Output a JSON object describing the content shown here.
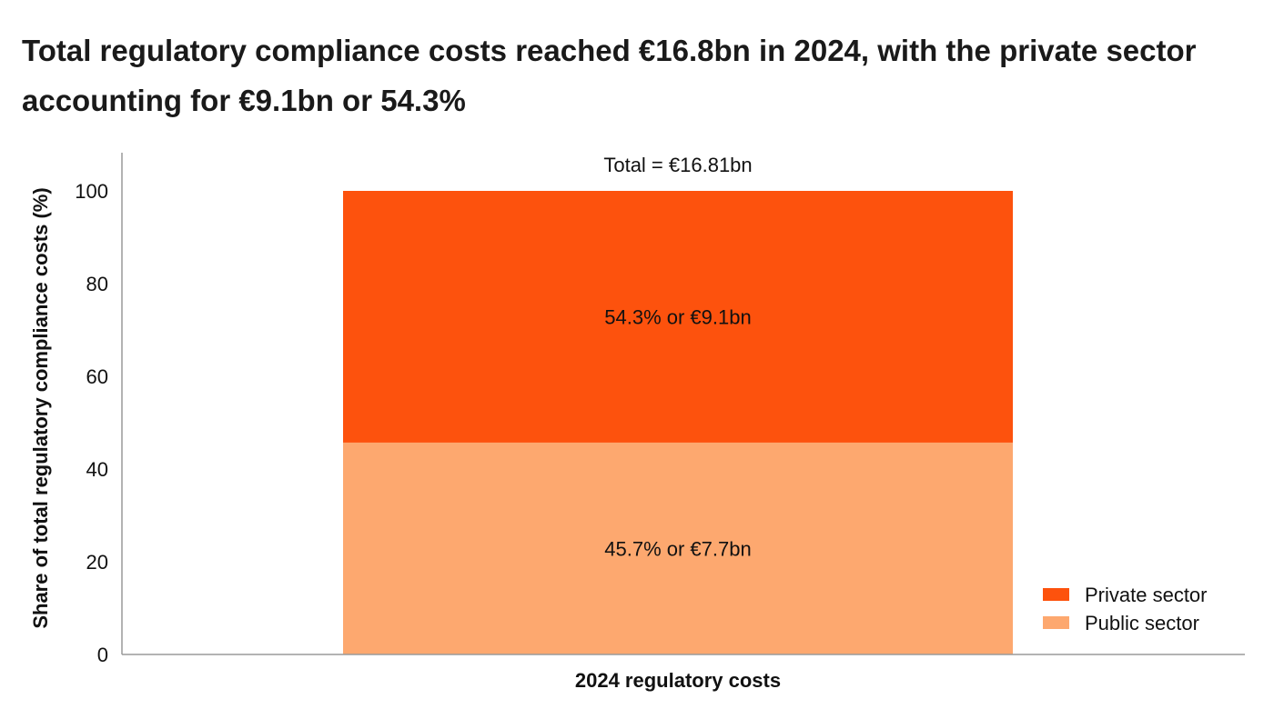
{
  "chart_data": {
    "type": "bar",
    "stacked": true,
    "title": "Total regulatory compliance costs reached €16.8bn in 2024, with the private sector accounting for €9.1bn or 54.3%",
    "xlabel": "2024 regulatory costs",
    "ylabel": "Share of total regulatory compliance costs (%)",
    "ylim": [
      0,
      100
    ],
    "yticks": [
      "0",
      "20",
      "40",
      "60",
      "80",
      "100"
    ],
    "categories": [
      ""
    ],
    "series": [
      {
        "name": "Public sector",
        "values": [
          45.7
        ],
        "color": "#fda86f",
        "label": "45.7% or €7.7bn"
      },
      {
        "name": "Private sector",
        "values": [
          54.3
        ],
        "color": "#fd520d",
        "label": "54.3% or €9.1bn"
      }
    ],
    "total_label": "Total = €16.81bn",
    "legend": {
      "position": "bottom-right",
      "entries": [
        {
          "name": "Private sector",
          "color": "#fd520d"
        },
        {
          "name": "Public sector",
          "color": "#fda86f"
        }
      ]
    },
    "grid": false
  }
}
